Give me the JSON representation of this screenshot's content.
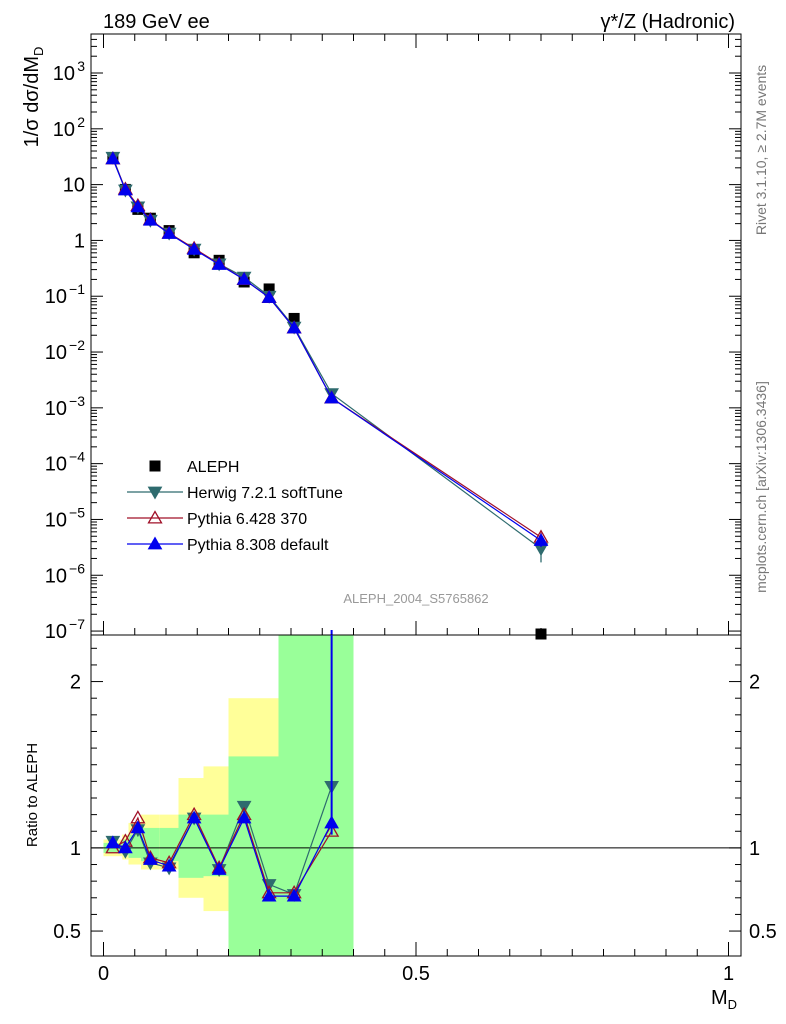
{
  "header": {
    "left": "189 GeV ee",
    "right": "γ*/Z (Hadronic)"
  },
  "side_texts": {
    "rivet": "Rivet 3.1.10, ≥ 2.7M events",
    "mcplots": "mcplots.cern.ch [arXiv:1306.3436]"
  },
  "watermark": "ALEPH_2004_S5765862",
  "colors": {
    "aleph": "#000000",
    "herwig": "#2e6b6e",
    "pythia6": "#a01028",
    "pythia8": "#0000ee",
    "band_inner": "#99ff99",
    "band_outer": "#ffff99"
  },
  "chart_data": [
    {
      "type": "scatter",
      "panel": "main",
      "ylabel": "1/σ dσ/dM_D",
      "yscale": "log",
      "xlim": [
        -0.02,
        1.02
      ],
      "ylim": [
        8.5e-08,
        5000.0
      ],
      "yticks": [
        {
          "v": 1000.0,
          "label": "10",
          "exp": "3"
        },
        {
          "v": 100.0,
          "label": "10",
          "exp": "2"
        },
        {
          "v": 10,
          "label": "10",
          "exp": ""
        },
        {
          "v": 1,
          "label": "1",
          "exp": ""
        },
        {
          "v": 0.1,
          "label": "10",
          "exp": "−1"
        },
        {
          "v": 0.01,
          "label": "10",
          "exp": "−2"
        },
        {
          "v": 0.001,
          "label": "10",
          "exp": "−3"
        },
        {
          "v": 0.0001,
          "label": "10",
          "exp": "−4"
        },
        {
          "v": 1e-05,
          "label": "10",
          "exp": "−5"
        },
        {
          "v": 1e-06,
          "label": "10",
          "exp": "−6"
        },
        {
          "v": 1e-07,
          "label": "10",
          "exp": "−7"
        }
      ],
      "legend": [
        "ALEPH",
        "Herwig 7.2.1 softTune",
        "Pythia 6.428 370",
        "Pythia 8.308 default"
      ],
      "legend_position": "bottom-left",
      "series": [
        {
          "name": "ALEPH",
          "marker": "square",
          "x": [
            0.015,
            0.035,
            0.055,
            0.075,
            0.105,
            0.145,
            0.185,
            0.225,
            0.265,
            0.305,
            0.7
          ],
          "y": [
            30,
            8.2,
            3.6,
            2.5,
            1.5,
            0.6,
            0.44,
            0.18,
            0.135,
            0.04,
            8.5e-08
          ]
        },
        {
          "name": "Herwig 7.2.1 softTune",
          "marker": "triangle-down",
          "x": [
            0.015,
            0.035,
            0.055,
            0.075,
            0.105,
            0.145,
            0.185,
            0.225,
            0.265,
            0.305,
            0.365,
            0.7
          ],
          "y": [
            31,
            8.0,
            4.0,
            2.3,
            1.35,
            0.7,
            0.38,
            0.22,
            0.1,
            0.028,
            0.0018,
            3e-06
          ],
          "err_last": [
            1.7e-06,
            4.5e-06
          ]
        },
        {
          "name": "Pythia 6.428 370",
          "marker": "triangle-up-open",
          "x": [
            0.015,
            0.035,
            0.055,
            0.075,
            0.105,
            0.145,
            0.185,
            0.225,
            0.265,
            0.305,
            0.365,
            0.7
          ],
          "y": [
            29,
            8.3,
            4.2,
            2.35,
            1.35,
            0.72,
            0.38,
            0.2,
            0.095,
            0.027,
            0.0015,
            4.8e-06
          ],
          "err_last": [
            3.8e-06,
            5.8e-06
          ]
        },
        {
          "name": "Pythia 8.308 default",
          "marker": "triangle-up",
          "x": [
            0.015,
            0.035,
            0.055,
            0.075,
            0.105,
            0.145,
            0.185,
            0.225,
            0.265,
            0.305,
            0.365,
            0.7
          ],
          "y": [
            29,
            8.0,
            4.0,
            2.3,
            1.33,
            0.69,
            0.37,
            0.2,
            0.095,
            0.027,
            0.0015,
            4.2e-06
          ],
          "err_last": [
            3.2e-06,
            5.3e-06
          ]
        }
      ]
    },
    {
      "type": "line",
      "panel": "ratio",
      "xlabel": "M_D",
      "ylabel": "Ratio to ALEPH",
      "xlim": [
        -0.02,
        1.02
      ],
      "ylim": [
        0.35,
        2.28
      ],
      "xticks": [
        {
          "v": 0,
          "label": "0"
        },
        {
          "v": 0.5,
          "label": "0.5"
        },
        {
          "v": 1,
          "label": "1"
        }
      ],
      "yticks": [
        {
          "v": 0.5,
          "label": "0.5"
        },
        {
          "v": 1,
          "label": "1"
        },
        {
          "v": 2,
          "label": "2"
        }
      ],
      "bands": [
        {
          "x": [
            0.0,
            0.03
          ],
          "outer": [
            0.95,
            1.05
          ],
          "inner": [
            0.97,
            1.03
          ]
        },
        {
          "x": [
            0.03,
            0.04
          ],
          "outer": [
            0.93,
            1.08
          ],
          "inner": [
            0.96,
            1.05
          ]
        },
        {
          "x": [
            0.04,
            0.06
          ],
          "outer": [
            0.9,
            1.15
          ],
          "inner": [
            0.94,
            1.08
          ]
        },
        {
          "x": [
            0.06,
            0.09
          ],
          "outer": [
            0.87,
            1.2
          ],
          "inner": [
            0.92,
            1.12
          ]
        },
        {
          "x": [
            0.09,
            0.12
          ],
          "outer": [
            0.87,
            1.2
          ],
          "inner": [
            0.92,
            1.12
          ]
        },
        {
          "x": [
            0.12,
            0.16
          ],
          "outer": [
            0.7,
            1.42
          ],
          "inner": [
            0.82,
            1.2
          ]
        },
        {
          "x": [
            0.16,
            0.2
          ],
          "outer": [
            0.62,
            1.49
          ],
          "inner": [
            0.83,
            1.2
          ]
        },
        {
          "x": [
            0.2,
            0.28
          ],
          "outer": [
            0.35,
            1.9
          ],
          "inner": [
            0.35,
            1.55
          ]
        },
        {
          "x": [
            0.28,
            0.32
          ],
          "outer": [
            0.35,
            2.28
          ],
          "inner": [
            0.35,
            2.28
          ]
        },
        {
          "x": [
            0.32,
            0.4
          ],
          "outer": [
            0.35,
            2.28
          ],
          "inner": [
            0.35,
            2.28
          ]
        }
      ],
      "bands_extra": [
        {
          "x": [
            0.2,
            0.28
          ],
          "outer": [
            0.35,
            0.56
          ],
          "inner": null
        }
      ],
      "series": [
        {
          "name": "Herwig 7.2.1 softTune",
          "marker": "triangle-down",
          "x": [
            0.015,
            0.035,
            0.055,
            0.075,
            0.105,
            0.145,
            0.185,
            0.225,
            0.265,
            0.305,
            0.365
          ],
          "y": [
            1.04,
            0.98,
            1.11,
            0.91,
            0.88,
            1.18,
            0.87,
            1.25,
            0.78,
            0.72,
            1.37
          ]
        },
        {
          "name": "Pythia 6.428 370",
          "marker": "triangle-up-open",
          "x": [
            0.015,
            0.035,
            0.055,
            0.075,
            0.105,
            0.145,
            0.185,
            0.225,
            0.265,
            0.305,
            0.365
          ],
          "y": [
            1.0,
            1.04,
            1.18,
            0.94,
            0.91,
            1.2,
            0.88,
            1.2,
            0.73,
            0.73,
            1.1
          ]
        },
        {
          "name": "Pythia 8.308 default",
          "marker": "triangle-up",
          "x": [
            0.015,
            0.035,
            0.055,
            0.075,
            0.105,
            0.145,
            0.185,
            0.225,
            0.265,
            0.305,
            0.365
          ],
          "y": [
            1.03,
            1.0,
            1.12,
            0.93,
            0.89,
            1.18,
            0.87,
            1.18,
            0.71,
            0.71,
            1.15
          ]
        }
      ],
      "vertical_error_last": {
        "series": "Pythia 8.308 default",
        "low": 1.08,
        "high": 2.28
      }
    }
  ]
}
